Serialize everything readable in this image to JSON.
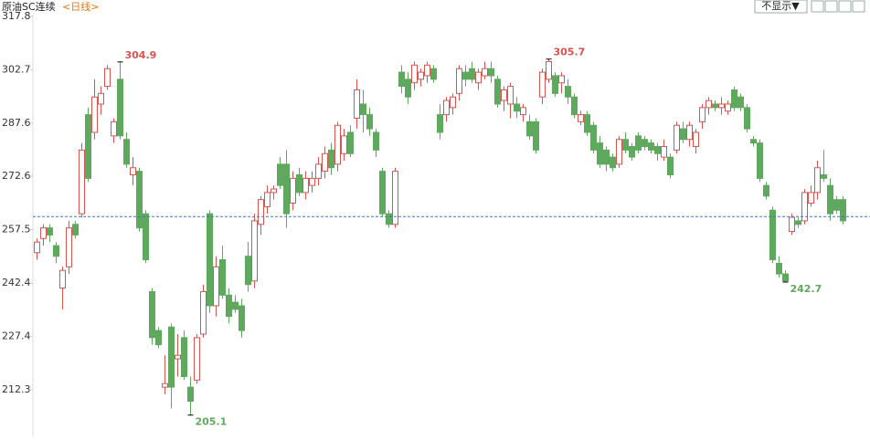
{
  "chart_data": {
    "type": "candlestick",
    "title": "原油SC连续",
    "period": "<日线>",
    "button": "不显示▼",
    "ylim": [
      199.1,
      322.4
    ],
    "yticks": [
      317.8,
      302.7,
      287.6,
      272.6,
      257.5,
      242.4,
      227.4,
      212.3
    ],
    "up_color": "#d9534f",
    "down_color": "#5ea95e",
    "reference_line": 261.2,
    "high_labels": [
      304.9,
      305.7
    ],
    "low_labels": [
      205.1,
      242.7
    ],
    "open": [
      251,
      255,
      258,
      253,
      241,
      247,
      259,
      262,
      290,
      285,
      293,
      298,
      284,
      300,
      283,
      273,
      274,
      262,
      240,
      229,
      213,
      230,
      221,
      227,
      213,
      215,
      228,
      262,
      236,
      249,
      239,
      237,
      236,
      250,
      243,
      259,
      264,
      268,
      276,
      276,
      265,
      273,
      268,
      270,
      272,
      274,
      280,
      276,
      279,
      285,
      289,
      293,
      290,
      285,
      274,
      262,
      259,
      302,
      300,
      299,
      300,
      301,
      303,
      290,
      290,
      292,
      296,
      302,
      303,
      299,
      301,
      303,
      300,
      294,
      293,
      293,
      290,
      288,
      288,
      295,
      300,
      301,
      299,
      298,
      295,
      288,
      290,
      287,
      282,
      280,
      278,
      276,
      283,
      281,
      284,
      283,
      282,
      281,
      278,
      278,
      280,
      286,
      283,
      281,
      288,
      292,
      293,
      292,
      291,
      297,
      295,
      292,
      283,
      282,
      270,
      263,
      248,
      245,
      257,
      260,
      260,
      265,
      268,
      273,
      270,
      266,
      266
    ],
    "high": [
      255,
      259,
      259,
      254,
      247,
      260,
      260,
      282,
      292,
      300,
      298,
      304,
      289,
      304.9,
      285,
      278,
      275,
      263,
      241,
      230,
      222,
      231,
      228,
      229,
      216,
      228,
      242,
      263,
      250,
      253,
      241,
      239,
      238,
      254,
      262,
      267,
      270,
      270,
      278,
      280,
      274,
      275,
      274,
      274,
      278,
      281,
      282,
      288,
      286,
      287,
      300,
      297,
      292,
      286,
      275,
      263,
      275,
      304,
      302,
      305,
      303,
      305,
      304,
      293,
      295,
      296,
      304,
      304,
      305,
      303,
      305,
      305,
      301,
      298,
      299,
      295,
      293,
      290,
      289,
      303,
      305.7,
      302,
      302,
      300,
      296,
      291,
      291,
      288,
      284,
      281,
      279,
      284,
      285,
      282,
      285,
      284,
      283,
      282,
      283,
      279,
      288,
      288,
      288,
      286,
      293,
      295,
      294,
      295,
      294,
      298,
      296,
      293,
      284,
      283,
      271,
      264,
      250,
      246,
      262,
      261,
      269,
      270,
      277,
      280,
      272,
      267,
      267
    ],
    "low": [
      249,
      253,
      254,
      248,
      235,
      245,
      255,
      261,
      271,
      283,
      290,
      297,
      282,
      283,
      275,
      270,
      257,
      248,
      225,
      224,
      211,
      207,
      216,
      215,
      205.1,
      214,
      227,
      234,
      233,
      238,
      231,
      234,
      227,
      240,
      241,
      256,
      262,
      266,
      269,
      258,
      263,
      267,
      266,
      268,
      270,
      272,
      273,
      274,
      277,
      278,
      286,
      285,
      284,
      278,
      261,
      258,
      258,
      296,
      293,
      297,
      298,
      299,
      299,
      283,
      288,
      290,
      294,
      298,
      299,
      297,
      300,
      299,
      292,
      291,
      289,
      289,
      288,
      283,
      279,
      293,
      299,
      295,
      296,
      293,
      289,
      287,
      284,
      279,
      275,
      274,
      274,
      275,
      279,
      277,
      279,
      280,
      279,
      277,
      277,
      272,
      279,
      282,
      281,
      279,
      286,
      290,
      291,
      290,
      290,
      291,
      291,
      285,
      281,
      271,
      266,
      248,
      244,
      242.7,
      256,
      258,
      259,
      264,
      266,
      271,
      260,
      262,
      259
    ],
    "close": [
      254,
      258,
      256,
      250,
      246,
      258,
      256,
      280,
      272,
      295,
      296,
      303,
      288,
      284,
      276,
      275,
      258,
      249,
      227,
      225,
      214,
      213,
      222,
      216,
      209,
      227,
      240,
      236,
      247,
      239,
      233,
      235,
      229,
      242,
      260,
      266,
      268,
      269,
      270,
      262,
      272,
      268,
      272,
      272,
      276,
      279,
      275,
      287,
      284,
      279,
      297,
      290,
      286,
      280,
      262,
      259,
      274,
      298,
      295,
      304,
      302,
      304,
      300,
      285,
      294,
      295,
      303,
      300,
      300,
      302,
      303,
      301,
      293,
      297,
      298,
      291,
      292,
      284,
      280,
      302,
      305,
      296,
      301,
      295,
      290,
      290,
      285,
      280,
      276,
      276,
      275,
      283,
      280,
      278,
      280,
      281,
      280,
      279,
      281,
      273,
      287,
      283,
      287,
      285,
      292,
      294,
      292,
      293,
      293,
      292,
      292,
      286,
      282,
      272,
      267,
      249,
      245,
      243,
      261,
      259,
      268,
      268,
      275,
      272,
      262,
      263,
      260
    ]
  }
}
